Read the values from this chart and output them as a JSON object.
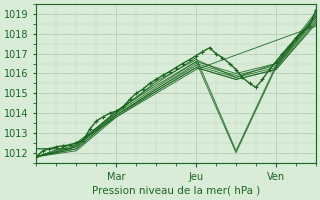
{
  "title": "",
  "xlabel": "Pression niveau de la mer( hPa )",
  "ylabel": "",
  "background_color": "#d8ecd8",
  "plot_bg_color": "#d8ecd8",
  "grid_color": "#b0c8b0",
  "line_color": "#1a6620",
  "ylim": [
    1011.5,
    1019.5
  ],
  "xlim_days": 3.5,
  "yticks": [
    1012,
    1013,
    1014,
    1015,
    1016,
    1017,
    1018,
    1019
  ],
  "day_labels": [
    "Mar",
    "Jeu",
    "Ven"
  ],
  "day_positions": [
    1.0,
    2.0,
    3.0
  ],
  "series": [
    [
      0.0,
      1011.8,
      0.08,
      1012.1,
      0.16,
      1012.2,
      0.25,
      1012.3,
      0.33,
      1012.35,
      0.42,
      1012.4,
      0.5,
      1012.5,
      0.58,
      1012.6,
      0.67,
      1013.2,
      0.75,
      1013.6,
      0.83,
      1013.8,
      0.92,
      1014.0,
      1.0,
      1014.1,
      1.08,
      1014.3,
      1.17,
      1014.7,
      1.25,
      1015.0,
      1.33,
      1015.2,
      1.42,
      1015.5,
      1.5,
      1015.7,
      1.58,
      1015.9,
      1.67,
      1016.1,
      1.75,
      1016.3,
      1.83,
      1016.5,
      1.92,
      1016.7,
      2.0,
      1016.9,
      2.08,
      1017.1,
      2.17,
      1017.3,
      2.25,
      1017.0,
      2.33,
      1016.8,
      2.42,
      1016.5,
      2.5,
      1016.2,
      2.58,
      1015.8,
      2.67,
      1015.5,
      2.75,
      1015.3,
      2.83,
      1015.7,
      2.92,
      1016.2,
      3.0,
      1016.6,
      3.08,
      1017.0,
      3.17,
      1017.4,
      3.25,
      1017.8,
      3.33,
      1018.1,
      3.42,
      1018.4,
      3.5,
      1019.2
    ],
    [
      0.0,
      1011.8,
      0.5,
      1012.5,
      1.0,
      1014.0,
      1.5,
      1015.6,
      2.0,
      1016.7,
      2.5,
      1015.8,
      3.0,
      1016.5,
      3.5,
      1019.1
    ],
    [
      0.0,
      1011.8,
      0.5,
      1012.4,
      1.0,
      1014.1,
      1.5,
      1015.5,
      2.0,
      1016.8,
      2.5,
      1012.1,
      3.0,
      1016.4,
      3.5,
      1019.0
    ],
    [
      0.0,
      1011.8,
      0.5,
      1012.3,
      1.0,
      1014.1,
      1.5,
      1015.4,
      2.0,
      1016.6,
      2.5,
      1012.0,
      3.0,
      1016.3,
      3.5,
      1018.9
    ],
    [
      0.0,
      1011.8,
      0.5,
      1012.3,
      1.0,
      1014.0,
      1.5,
      1015.3,
      2.0,
      1016.6,
      2.5,
      1016.0,
      3.0,
      1016.5,
      3.5,
      1018.9
    ],
    [
      0.0,
      1011.8,
      0.5,
      1012.2,
      1.0,
      1013.9,
      1.5,
      1015.2,
      2.0,
      1016.5,
      2.5,
      1015.9,
      3.0,
      1016.4,
      3.5,
      1018.8
    ],
    [
      0.0,
      1011.8,
      0.5,
      1012.2,
      1.0,
      1013.9,
      1.5,
      1015.2,
      2.0,
      1016.4,
      2.5,
      1015.8,
      3.0,
      1016.3,
      3.5,
      1018.7
    ],
    [
      0.0,
      1011.8,
      0.5,
      1012.1,
      1.0,
      1013.8,
      1.5,
      1015.1,
      2.0,
      1016.3,
      2.5,
      1015.7,
      3.0,
      1016.2,
      3.5,
      1018.6
    ],
    [
      0.0,
      1012.2,
      0.42,
      1012.2,
      1.0,
      1013.9,
      1.5,
      1015.1,
      2.0,
      1016.3,
      2.5,
      1015.7,
      3.0,
      1016.2,
      3.5,
      1018.5
    ],
    [
      0.0,
      1012.2,
      0.42,
      1012.2,
      1.0,
      1013.8,
      1.5,
      1015.0,
      2.0,
      1016.2,
      3.5,
      1018.4
    ]
  ],
  "main_series_idx": 0
}
